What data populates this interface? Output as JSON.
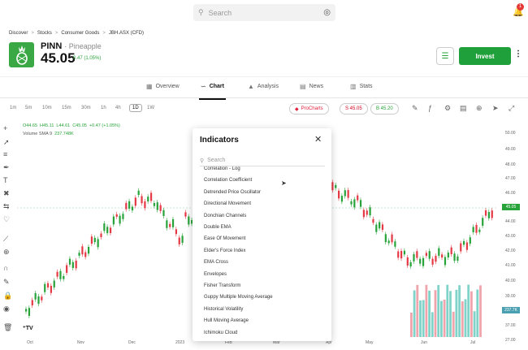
{
  "header": {
    "search_placeholder": "Search",
    "notification_count": "1"
  },
  "breadcrumbs": [
    "Discover",
    "Stocks",
    "Consumer Goods",
    "JBH.ASX (CFD)"
  ],
  "instrument": {
    "symbol": "PINN",
    "company": "Pineapple",
    "price": "45.05",
    "change": "0.47 (1.05%)"
  },
  "actions": {
    "invest_label": "Invest"
  },
  "tabs": [
    {
      "label": "Overview",
      "icon": "overview-icon"
    },
    {
      "label": "Chart",
      "icon": "chart-icon"
    },
    {
      "label": "Analysis",
      "icon": "analysis-icon"
    },
    {
      "label": "News",
      "icon": "news-icon"
    },
    {
      "label": "Stats",
      "icon": "stats-icon"
    }
  ],
  "timeframes": [
    "1m",
    "5m",
    "10m",
    "15m",
    "30m",
    "1h",
    "4h",
    "1D",
    "1W"
  ],
  "selected_timeframe": "1D",
  "chart_toolbar": {
    "prochart_label": "ProCharts",
    "sell_label": "S 45.05",
    "buy_label": "B 45.20"
  },
  "ohlc": {
    "o": "O44.65",
    "h": "H45.11",
    "l": "L44.61",
    "c": "C45.05",
    "chg": "+0.47 (+1.05%)"
  },
  "volume": {
    "label": "Volume SMA 9",
    "value": "237.748K"
  },
  "yaxis_ticks": [
    "50.00",
    "49.00",
    "48.00",
    "47.00",
    "46.00",
    "45.00",
    "44.00",
    "43.00",
    "42.00",
    "41.00",
    "40.00",
    "39.00",
    "38.00",
    "37.00",
    "27.00"
  ],
  "price_tag": "45.05",
  "volume_tag": "237.7K",
  "xaxis_ticks": [
    "Oct",
    "Nov",
    "Dec",
    "2023",
    "Feb",
    "Mar",
    "Apr",
    "May",
    "Jun",
    "Jul"
  ],
  "indicators_panel": {
    "title": "Indicators",
    "search_placeholder": "Search",
    "items": [
      "Correlation - Log",
      "Correlation Coefficient",
      "Detrended Price Oscillator",
      "Directional Movement",
      "Donchian Channels",
      "Double EMA",
      "Ease Of Movement",
      "Elder's Force Index",
      "EMA Cross",
      "Envelopes",
      "Fisher Transform",
      "Guppy Multiple Moving Average",
      "Historical Volatility",
      "Hull Moving Average",
      "Ichimoku Cloud"
    ]
  },
  "colors": {
    "up": "#27a33a",
    "down": "#e53945",
    "accent": "#20a03a"
  }
}
